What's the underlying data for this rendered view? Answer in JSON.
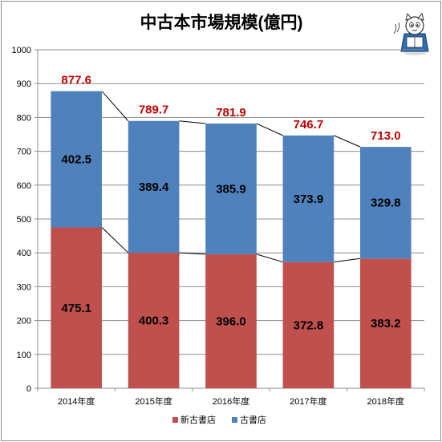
{
  "chart_data": {
    "type": "bar",
    "stacked": true,
    "title": "中古本市場規模(億円)",
    "categories": [
      "2014年度",
      "2015年度",
      "2016年度",
      "2017年度",
      "2018年度"
    ],
    "series": [
      {
        "name": "新古書店",
        "values": [
          475.1,
          400.3,
          396.0,
          372.8,
          383.2
        ],
        "color": "#c0504d"
      },
      {
        "name": "古書店",
        "values": [
          402.5,
          389.4,
          385.9,
          373.9,
          329.8
        ],
        "color": "#4f81bd"
      }
    ],
    "totals": [
      "877.6",
      "789.7",
      "781.9",
      "746.7",
      "713.0"
    ],
    "segment_labels": [
      [
        "475.1",
        "400.3",
        "396.0",
        "372.8",
        "383.2"
      ],
      [
        "402.5",
        "389.4",
        "385.9",
        "373.9",
        "329.8"
      ]
    ],
    "total_label_color": "#c00000",
    "ylim": [
      0,
      1000
    ],
    "yticks": [
      "0",
      "100",
      "200",
      "300",
      "400",
      "500",
      "600",
      "700",
      "800",
      "900",
      "1000"
    ],
    "grid": true,
    "series_lines": true,
    "legend": "bottom",
    "xlabel": "",
    "ylabel": ""
  },
  "mascot": {
    "icon": "mascot-reading-icon"
  }
}
